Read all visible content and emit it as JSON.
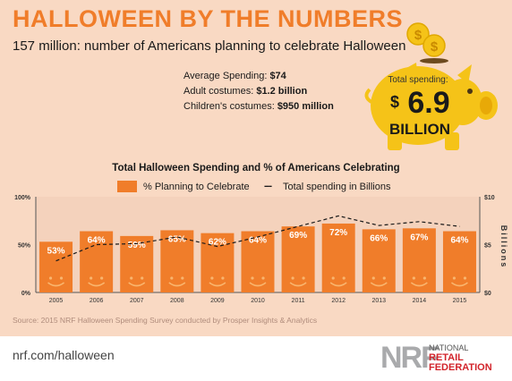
{
  "header": {
    "title": "HALLOWEEN BY THE NUMBERS",
    "subtitle": "157 million: number of Americans planning to celebrate Halloween"
  },
  "stats": [
    {
      "label": "Average Spending:",
      "value": "$74"
    },
    {
      "label": "Adult costumes:",
      "value": "$1.2 billion"
    },
    {
      "label": "Children's costumes:",
      "value": "$950 million"
    }
  ],
  "piggy": {
    "label": "Total spending:",
    "amount_symbol": "$",
    "amount": "6.9",
    "unit": "BILLION",
    "coin_symbol": "$"
  },
  "chart_data": {
    "type": "bar",
    "title": "Total Halloween Spending and % of Americans Celebrating",
    "legend": {
      "bar_label": "% Planning to Celebrate",
      "line_symbol": "---",
      "line_label": "Total spending in Billions",
      "placement": "top"
    },
    "categories": [
      "2005",
      "2006",
      "2007",
      "2008",
      "2009",
      "2010",
      "2011",
      "2012",
      "2013",
      "2014",
      "2015"
    ],
    "series": [
      {
        "name": "% Planning to Celebrate",
        "axis": "left",
        "values": [
          53,
          64,
          59,
          65,
          62,
          64,
          69,
          72,
          66,
          67,
          64
        ],
        "labels": [
          "53%",
          "64%",
          "59%",
          "65%",
          "62%",
          "64%",
          "69%",
          "72%",
          "66%",
          "67%",
          "64%"
        ],
        "color": "#f07d2a"
      },
      {
        "name": "Total spending in Billions",
        "axis": "right",
        "type": "line",
        "style": "dashed",
        "values": [
          3.3,
          5.0,
          5.1,
          5.8,
          4.8,
          5.8,
          6.9,
          8.0,
          7.0,
          7.4,
          6.9
        ],
        "color": "#1a1a1a"
      }
    ],
    "left_axis": {
      "ticks": [
        "0%",
        "50%",
        "100%"
      ],
      "ylim": [
        0,
        100
      ]
    },
    "right_axis": {
      "ticks": [
        "$0",
        "$5",
        "$10"
      ],
      "ylim": [
        0,
        10
      ],
      "label": "Billions"
    },
    "grid": false
  },
  "source": "Source: 2015 NRF Halloween Spending Survey conducted by Prosper Insights & Analytics",
  "footer": {
    "url": "nrf.com/halloween",
    "logo_mark": "NRF",
    "org_line1": "NATIONAL",
    "org_line2": "RETAIL",
    "org_line3": "FEDERATION"
  },
  "colors": {
    "accent": "#f07d2a",
    "piggy": "#f5c318",
    "background": "#f9d9c3",
    "chart_background": "#f4d2bc"
  }
}
